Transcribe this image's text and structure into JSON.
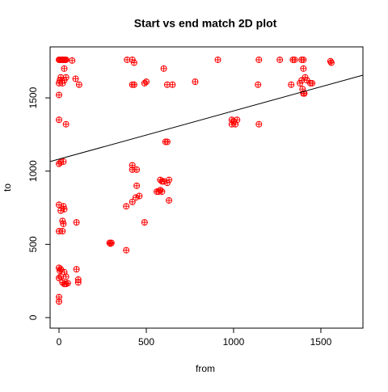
{
  "chart_data": {
    "type": "scatter",
    "title": "Start vs end match 2D plot",
    "x_label": "from",
    "y_label": "to",
    "color": "#ff0000",
    "x": [
      0,
      5,
      10,
      15,
      20,
      25,
      30,
      35,
      40,
      75,
      390,
      420,
      430,
      600,
      910,
      1145,
      1265,
      1340,
      1350,
      1390,
      1400,
      1555,
      1560,
      0,
      5,
      10,
      20,
      30,
      40,
      95,
      115,
      420,
      430,
      490,
      500,
      620,
      650,
      780,
      1140,
      1330,
      1380,
      1390,
      1395,
      1400,
      1405,
      1410,
      1420,
      1440,
      1450,
      1400,
      0,
      30,
      0,
      40,
      990,
      990,
      1000,
      1010,
      1020,
      1145,
      610,
      620,
      0,
      10,
      25,
      420,
      420,
      445,
      445,
      580,
      590,
      600,
      620,
      630,
      560,
      570,
      580,
      590,
      440,
      460,
      420,
      630,
      385,
      0,
      10,
      25,
      30,
      20,
      25,
      100,
      490,
      0,
      20,
      290,
      300,
      295,
      385,
      0,
      5,
      10,
      30,
      100,
      0,
      10,
      40,
      110,
      110,
      20,
      30,
      40,
      50,
      0,
      0
    ],
    "values": [
      1760,
      1760,
      1760,
      1760,
      1760,
      1760,
      1760,
      1760,
      1760,
      1755,
      1760,
      1760,
      1740,
      1700,
      1760,
      1760,
      1760,
      1760,
      1760,
      1760,
      1760,
      1750,
      1740,
      1600,
      1620,
      1640,
      1600,
      1620,
      1640,
      1630,
      1590,
      1590,
      1590,
      1600,
      1610,
      1590,
      1590,
      1610,
      1590,
      1590,
      1600,
      1620,
      1560,
      1530,
      1530,
      1640,
      1620,
      1600,
      1600,
      1700,
      1520,
      1700,
      1350,
      1320,
      1350,
      1320,
      1340,
      1320,
      1350,
      1320,
      1200,
      1200,
      1050,
      1060,
      1065,
      1040,
      1010,
      1010,
      900,
      940,
      930,
      930,
      920,
      940,
      860,
      860,
      870,
      860,
      820,
      830,
      790,
      800,
      760,
      770,
      730,
      760,
      740,
      660,
      640,
      650,
      650,
      590,
      590,
      510,
      510,
      505,
      460,
      340,
      320,
      330,
      310,
      330,
      270,
      280,
      280,
      260,
      240,
      240,
      230,
      230,
      235,
      140,
      110
    ],
    "trend_line": {
      "x": [
        -51,
        1741
      ],
      "y": [
        1065,
        1655
      ]
    },
    "xlim": [
      -51,
      1741
    ],
    "ylim": [
      -72,
      1848
    ],
    "xticks": [
      0,
      500,
      1000,
      1500
    ],
    "yticks": [
      0,
      500,
      1000,
      1500
    ]
  }
}
